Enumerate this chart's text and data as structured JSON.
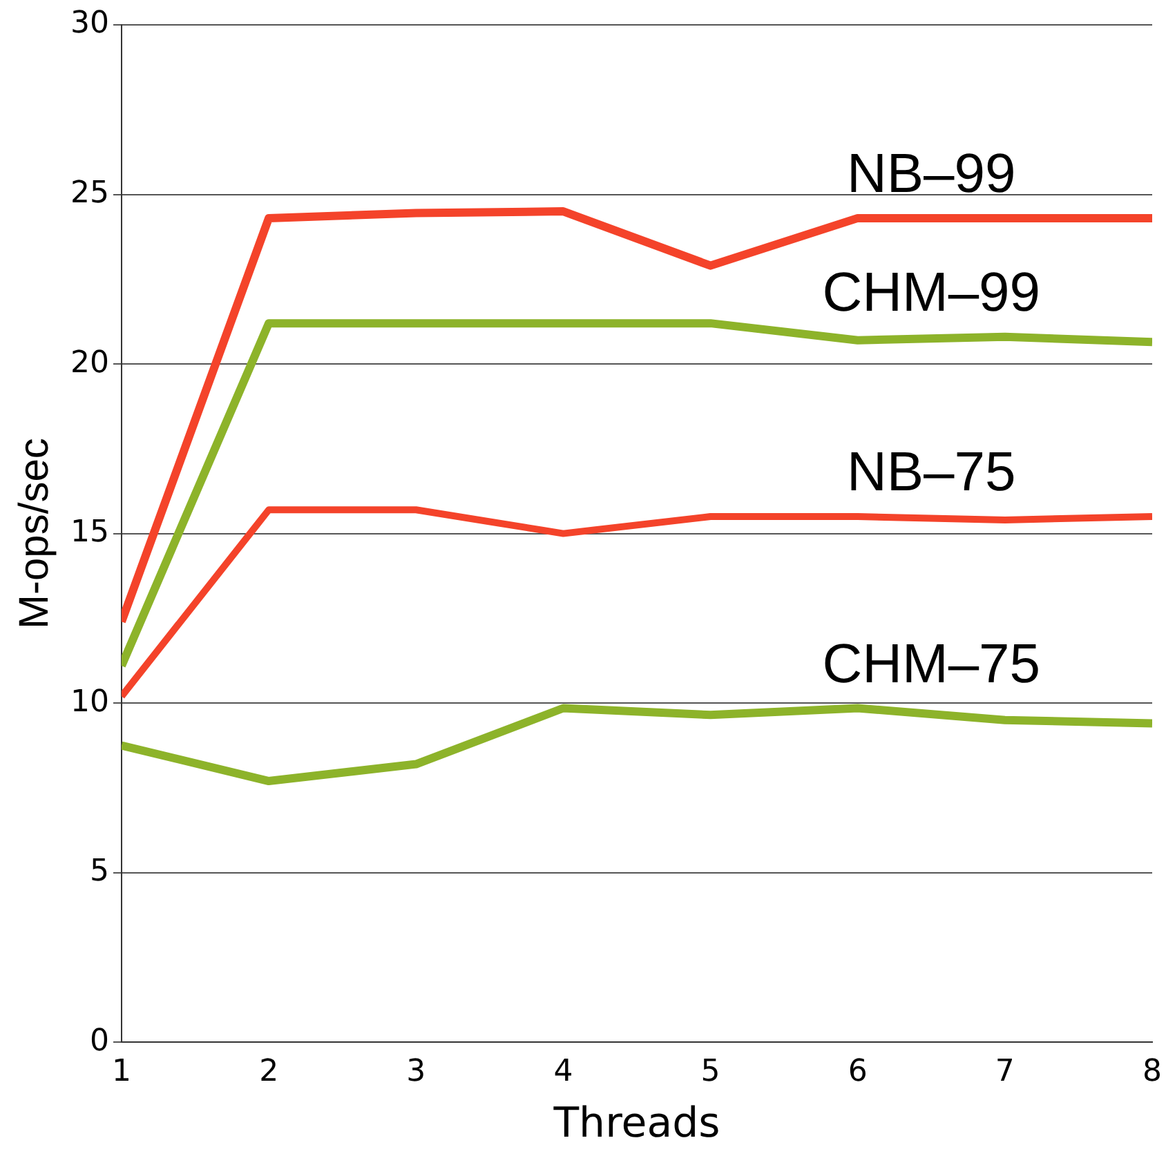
{
  "chart_data": {
    "type": "line",
    "xlabel": "Threads",
    "ylabel": "M-ops/sec",
    "x": [
      1,
      2,
      3,
      4,
      5,
      6,
      7,
      8
    ],
    "series": [
      {
        "name": "NB–99",
        "color": "#f4432a",
        "values": [
          12.4,
          24.3,
          24.45,
          24.5,
          22.9,
          24.3,
          24.3,
          24.3
        ]
      },
      {
        "name": "CHM–99",
        "color": "#8db32a",
        "values": [
          11.1,
          21.2,
          21.2,
          21.2,
          21.2,
          20.7,
          20.8,
          20.65
        ]
      },
      {
        "name": "NB–75",
        "color": "#f4432a",
        "values": [
          10.2,
          15.7,
          15.7,
          15.0,
          15.5,
          15.5,
          15.4,
          15.5
        ]
      },
      {
        "name": "CHM–75",
        "color": "#8db32a",
        "values": [
          8.75,
          7.7,
          8.2,
          9.85,
          9.65,
          9.85,
          9.5,
          9.4
        ]
      }
    ],
    "xlim": [
      1,
      8
    ],
    "xticks": [
      1,
      2,
      3,
      4,
      5,
      6,
      7,
      8
    ],
    "ylim": [
      0,
      30
    ],
    "yticks": [
      0,
      5,
      10,
      15,
      20,
      25,
      30
    ],
    "grid": "y",
    "legend": false,
    "marker": "none",
    "line_style": "solid"
  }
}
